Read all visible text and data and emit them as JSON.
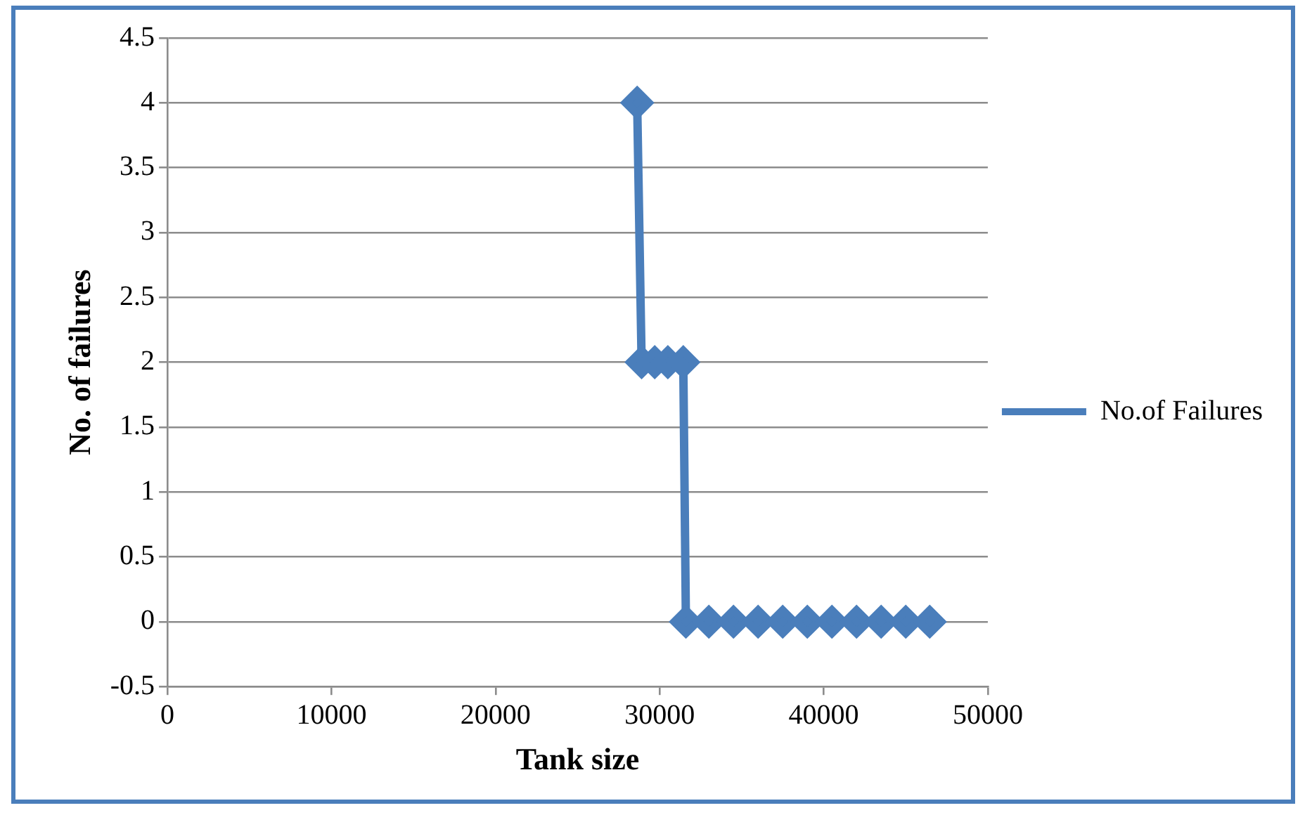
{
  "chart_data": {
    "type": "line",
    "xlabel": "Tank size",
    "ylabel": "No. of failures",
    "xlim": [
      0,
      50000
    ],
    "xticks": [
      0,
      10000,
      20000,
      30000,
      40000,
      50000
    ],
    "ylim": [
      -0.5,
      4.5
    ],
    "yticks": [
      -0.5,
      0,
      0.5,
      1,
      1.5,
      2,
      2.5,
      3,
      3.5,
      4,
      4.5
    ],
    "grid": "y",
    "legend": "right",
    "marker": "diamond",
    "line_style": "solid",
    "series": [
      {
        "name": "No.of Failures",
        "color": "#4a7ebb",
        "x": [
          28630,
          28900,
          29700,
          30500,
          31440,
          31600,
          33000,
          34500,
          36000,
          37500,
          39000,
          40500,
          42000,
          43500,
          45000,
          46460
        ],
        "values": [
          4,
          2,
          2,
          2,
          2,
          0,
          0,
          0,
          0,
          0,
          0,
          0,
          0,
          0,
          0,
          0
        ]
      }
    ]
  }
}
